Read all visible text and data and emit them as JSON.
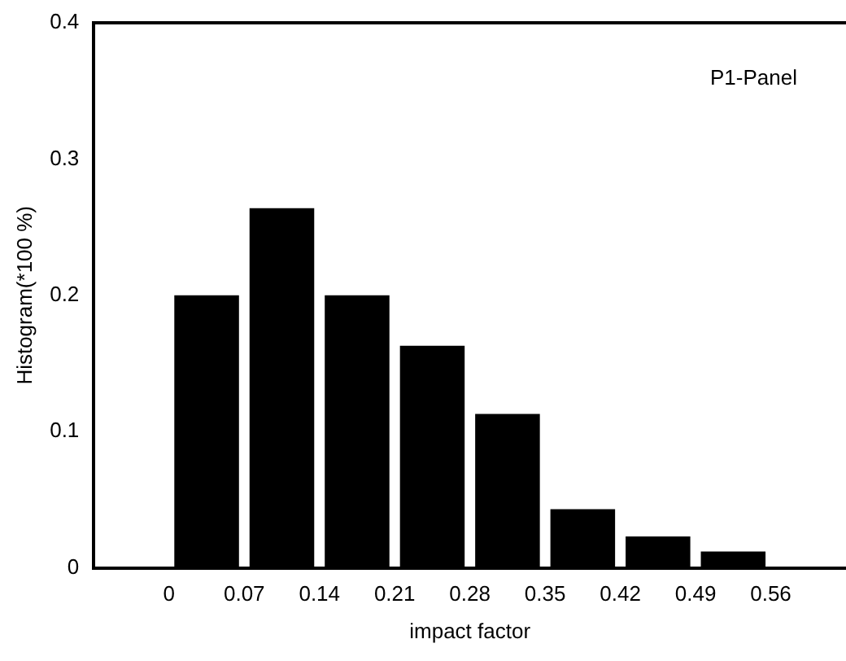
{
  "chart_data": {
    "type": "histogram",
    "xlabel": "impact factor",
    "ylabel": "Histogram(*100 %)",
    "bins": [
      0,
      0.07,
      0.14,
      0.21,
      0.28,
      0.35,
      0.42,
      0.49,
      0.56
    ],
    "values": [
      0.2,
      0.264,
      0.2,
      0.163,
      0.113,
      0.043,
      0.023,
      0.012
    ],
    "color": "#000000",
    "xlim": [
      -0.07,
      0.63
    ],
    "xticks": [
      0,
      0.07,
      0.14,
      0.21,
      0.28,
      0.35,
      0.42,
      0.49,
      0.56
    ],
    "ylim": [
      0,
      0.4
    ],
    "yticks": [
      0,
      0.1,
      0.2,
      0.3,
      0.4
    ],
    "grid": false,
    "legend": false,
    "annotations": [
      "P1-Panel"
    ]
  }
}
